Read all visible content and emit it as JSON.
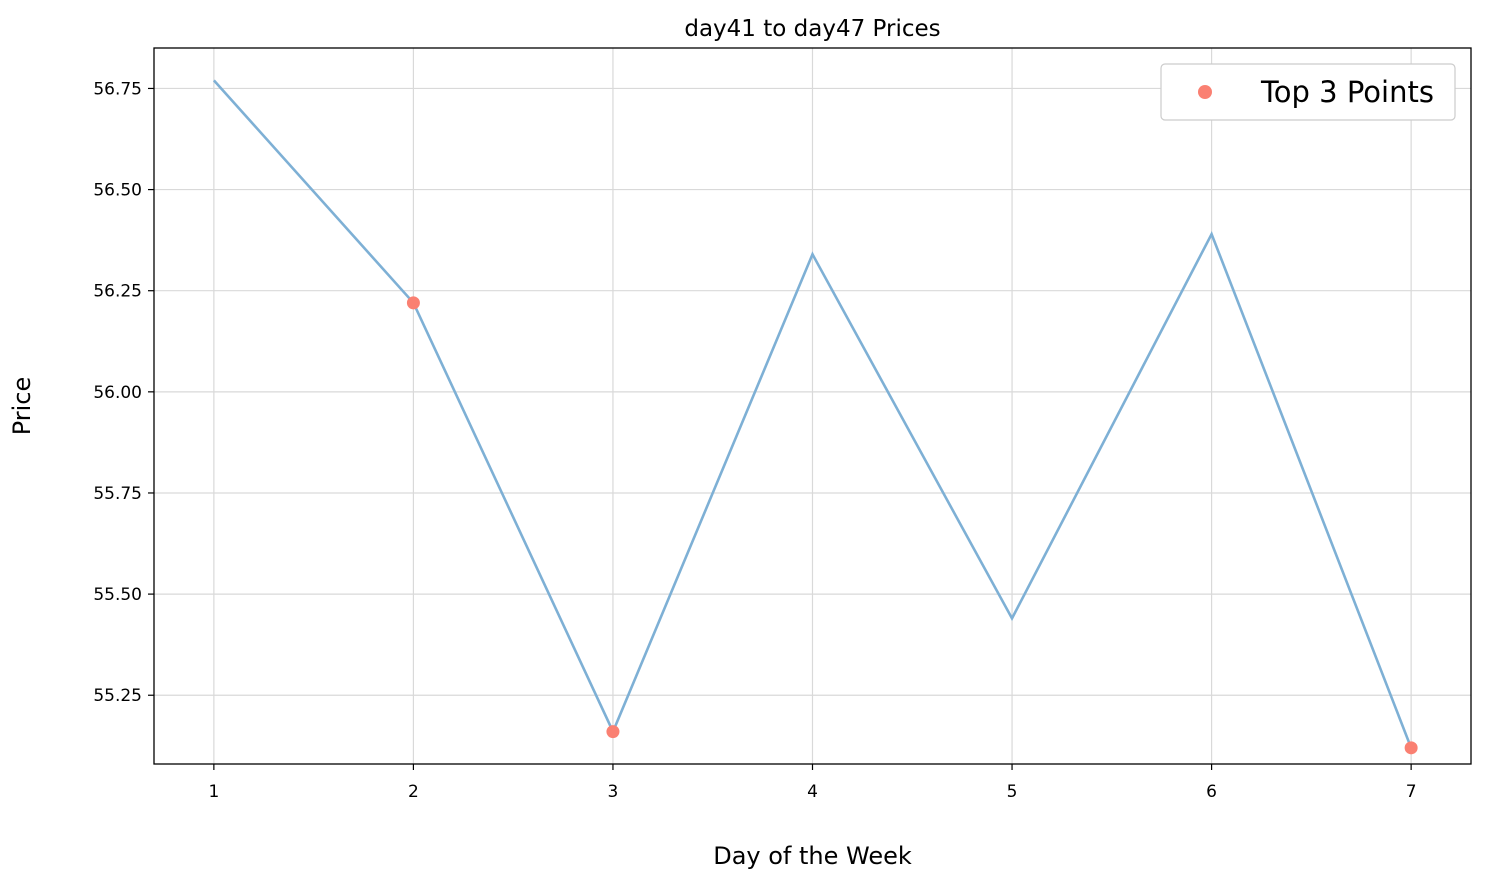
{
  "chart_data": {
    "type": "line",
    "title": "day41 to day47 Prices",
    "xlabel": "Day of the Week",
    "ylabel": "Price",
    "x": [
      1,
      2,
      3,
      4,
      5,
      6,
      7
    ],
    "x_tick_labels": [
      "1",
      "2",
      "3",
      "4",
      "5",
      "6",
      "7"
    ],
    "xlim": [
      0.7,
      7.3
    ],
    "ylim": [
      55.08,
      56.85
    ],
    "y_ticks": [
      55.25,
      55.5,
      55.75,
      56.0,
      56.25,
      56.5,
      56.75
    ],
    "y_tick_labels": [
      "55.25",
      "55.50",
      "55.75",
      "56.00",
      "56.25",
      "56.50",
      "56.75"
    ],
    "grid": true,
    "legend_position": "top-right",
    "series": [
      {
        "values": [
          56.77,
          56.22,
          55.16,
          56.34,
          55.44,
          56.39,
          55.12
        ],
        "color": "#7eb0d5"
      },
      {
        "name": "Top 3 Points",
        "kind": "scatter",
        "x": [
          2,
          3,
          7
        ],
        "values": [
          56.22,
          55.16,
          55.12
        ],
        "color": "#fa8072"
      }
    ]
  }
}
